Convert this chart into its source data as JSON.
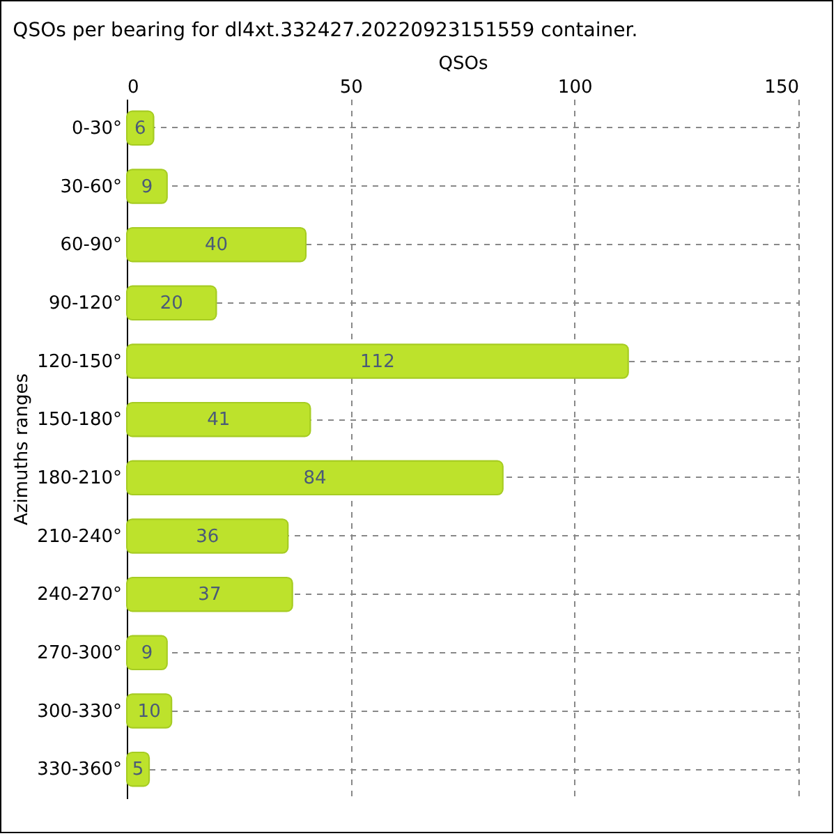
{
  "chart_data": {
    "type": "bar",
    "orientation": "horizontal",
    "title": "QSOs per bearing for dl4xt.332427.20220923151559 container.",
    "xlabel": "QSOs",
    "ylabel": "Azimuths ranges",
    "categories": [
      "0-30°",
      "30-60°",
      "60-90°",
      "90-120°",
      "120-150°",
      "150-180°",
      "180-210°",
      "210-240°",
      "240-270°",
      "270-300°",
      "300-330°",
      "330-360°"
    ],
    "values": [
      6,
      9,
      40,
      20,
      112,
      41,
      84,
      36,
      37,
      9,
      10,
      5
    ],
    "color": "#bde22c",
    "xlim": [
      0,
      150
    ],
    "xticks": [
      0,
      50,
      100,
      150
    ],
    "grid": true,
    "data_labels": true
  }
}
